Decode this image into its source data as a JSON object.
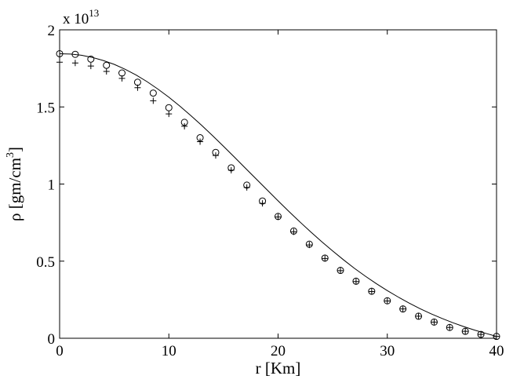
{
  "chart_data": {
    "type": "line",
    "xlabel": "r [Km]",
    "ylabel": "ρ [gm/cm",
    "ylabel_sup": "3",
    "ylabel_close": "]",
    "y_multiplier": "x 10",
    "y_multiplier_exp": "13",
    "xlim": [
      0,
      40
    ],
    "ylim": [
      0,
      2
    ],
    "x_ticks": [
      0,
      10,
      20,
      30,
      40
    ],
    "y_ticks": [
      0,
      0.5,
      1,
      1.5,
      2
    ],
    "x_tick_labels": [
      "0",
      "10",
      "20",
      "30",
      "40"
    ],
    "y_tick_labels": [
      "0",
      "0.5",
      "1",
      "1.5",
      "2"
    ],
    "grid": false,
    "series": [
      {
        "style": "solid-line",
        "x": [
          0,
          1,
          2,
          3,
          4,
          5,
          6,
          7,
          8,
          9,
          10,
          11,
          12,
          13,
          14,
          15,
          16,
          17,
          18,
          19,
          20,
          21,
          22,
          23,
          24,
          25,
          26,
          27,
          28,
          29,
          30,
          31,
          32,
          33,
          34,
          35,
          36,
          37,
          38,
          39,
          40
        ],
        "y": [
          1.845,
          1.843,
          1.835,
          1.821,
          1.801,
          1.776,
          1.744,
          1.707,
          1.664,
          1.616,
          1.563,
          1.506,
          1.445,
          1.381,
          1.314,
          1.245,
          1.175,
          1.104,
          1.033,
          0.962,
          0.891,
          0.822,
          0.754,
          0.689,
          0.626,
          0.566,
          0.508,
          0.453,
          0.402,
          0.354,
          0.309,
          0.267,
          0.228,
          0.192,
          0.159,
          0.129,
          0.101,
          0.076,
          0.053,
          0.032,
          0.012
        ]
      },
      {
        "style": "circle-marker",
        "x": [
          0,
          1.43,
          2.86,
          4.29,
          5.71,
          7.14,
          8.57,
          10,
          11.43,
          12.86,
          14.29,
          15.71,
          17.14,
          18.57,
          20,
          21.43,
          22.86,
          24.29,
          25.71,
          27.14,
          28.57,
          30,
          31.43,
          32.86,
          34.29,
          35.71,
          37.14,
          38.57,
          40
        ],
        "y": [
          1.845,
          1.841,
          1.81,
          1.77,
          1.72,
          1.66,
          1.59,
          1.495,
          1.4,
          1.3,
          1.205,
          1.105,
          0.993,
          0.89,
          0.79,
          0.695,
          0.61,
          0.52,
          0.44,
          0.37,
          0.305,
          0.243,
          0.19,
          0.143,
          0.105,
          0.07,
          0.045,
          0.025,
          0.012
        ]
      },
      {
        "style": "plus-marker",
        "x": [
          0,
          1.43,
          2.86,
          4.29,
          5.71,
          7.14,
          8.57,
          10,
          11.43,
          12.86,
          14.29,
          15.71,
          17.14,
          18.57,
          20,
          21.43,
          22.86,
          24.29,
          25.71,
          27.14,
          28.57,
          30,
          31.43,
          32.86,
          34.29,
          35.71,
          37.14,
          38.57,
          40
        ],
        "y": [
          1.79,
          1.785,
          1.765,
          1.73,
          1.685,
          1.625,
          1.54,
          1.455,
          1.375,
          1.275,
          1.185,
          1.09,
          0.978,
          0.875,
          0.787,
          0.69,
          0.605,
          0.517,
          0.438,
          0.368,
          0.303,
          0.242,
          0.19,
          0.143,
          0.105,
          0.07,
          0.045,
          0.025,
          0.012
        ]
      }
    ]
  }
}
